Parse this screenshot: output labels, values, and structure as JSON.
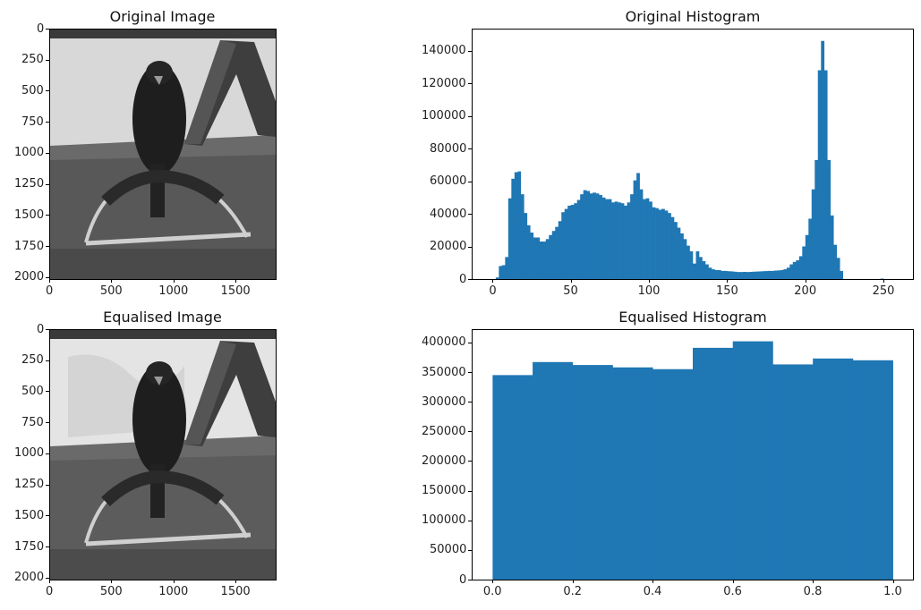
{
  "figure": {
    "panels": [
      {
        "id": "orig_img",
        "title": "Original Image"
      },
      {
        "id": "orig_hist",
        "title": "Original Histogram"
      },
      {
        "id": "eq_img",
        "title": "Equalised Image"
      },
      {
        "id": "eq_hist",
        "title": "Equalised Histogram"
      }
    ],
    "bar_color": "#1f77b4"
  },
  "image_axes": {
    "xticks": [
      "0",
      "500",
      "1000",
      "1500"
    ],
    "xtick_values": [
      0,
      500,
      1000,
      1500
    ],
    "yticks": [
      "0",
      "250",
      "500",
      "750",
      "1000",
      "1250",
      "1500",
      "1750",
      "2000"
    ],
    "ytick_values": [
      0,
      250,
      500,
      750,
      1000,
      1250,
      1500,
      1750,
      2000
    ],
    "xlim": [
      0,
      1824
    ],
    "ylim": [
      2016,
      0
    ],
    "content": "grayscale photo of a dark bird of prey perched on a wrapped semicircular metal perch on grass, white wall and A-frame structure behind"
  },
  "chart_data": [
    {
      "type": "bar",
      "title": "Original Histogram",
      "xlabel": "",
      "ylabel": "",
      "xlim": [
        -12.8,
        268.8
      ],
      "ylim": [
        0,
        153000
      ],
      "xticks": [
        0,
        50,
        100,
        150,
        200,
        250
      ],
      "yticks": [
        0,
        20000,
        40000,
        60000,
        80000,
        100000,
        120000,
        140000
      ],
      "bin_width": 2,
      "bin_start": 0,
      "values": [
        0,
        1000,
        8000,
        8500,
        13500,
        49500,
        61500,
        65500,
        66000,
        52000,
        40500,
        33000,
        28500,
        25500,
        25500,
        23000,
        23000,
        24500,
        27000,
        29500,
        32000,
        35500,
        41000,
        43000,
        45000,
        45500,
        46500,
        48500,
        52000,
        54500,
        54000,
        52500,
        53000,
        52500,
        51500,
        50000,
        49000,
        49000,
        47000,
        47500,
        47000,
        46500,
        45000,
        47000,
        52000,
        60500,
        65000,
        55000,
        49000,
        49500,
        47500,
        44000,
        43500,
        42500,
        43000,
        42000,
        40500,
        38000,
        35000,
        31500,
        28000,
        24500,
        20500,
        17000,
        9500,
        17000,
        13500,
        11000,
        9000,
        7000,
        6000,
        5500,
        5500,
        5000,
        5000,
        4800,
        4700,
        4500,
        4300,
        4300,
        4400,
        4300,
        4400,
        4500,
        4600,
        4700,
        4800,
        4900,
        5000,
        5000,
        5200,
        5300,
        5500,
        6000,
        7000,
        9000,
        10500,
        11500,
        14000,
        20000,
        27000,
        37000,
        55000,
        73000,
        128000,
        146000,
        128000,
        73000,
        39000,
        21000,
        13000,
        5000,
        0,
        0,
        0,
        0,
        0,
        0,
        0,
        0,
        0,
        0,
        0,
        0,
        300,
        0,
        0,
        0
      ]
    },
    {
      "type": "bar",
      "title": "Equalised Histogram",
      "xlabel": "",
      "ylabel": "",
      "xlim": [
        -0.05,
        1.05
      ],
      "ylim": [
        0,
        421000
      ],
      "xticks": [
        "0.0",
        "0.2",
        "0.4",
        "0.6",
        "0.8",
        "1.0"
      ],
      "xtick_values": [
        0.0,
        0.2,
        0.4,
        0.6,
        0.8,
        1.0
      ],
      "yticks": [
        0,
        50000,
        100000,
        150000,
        200000,
        250000,
        300000,
        350000,
        400000
      ],
      "categories": [
        "0.0-0.1",
        "0.1-0.2",
        "0.2-0.3",
        "0.3-0.4",
        "0.4-0.5",
        "0.5-0.6",
        "0.6-0.7",
        "0.7-0.8",
        "0.8-0.9",
        "0.9-1.0"
      ],
      "bin_edges": [
        0.0,
        0.1,
        0.2,
        0.3,
        0.4,
        0.5,
        0.6,
        0.7,
        0.8,
        0.9,
        1.0
      ],
      "values": [
        345000,
        367000,
        362000,
        358000,
        355000,
        391000,
        402000,
        363000,
        373000,
        370000
      ]
    }
  ]
}
